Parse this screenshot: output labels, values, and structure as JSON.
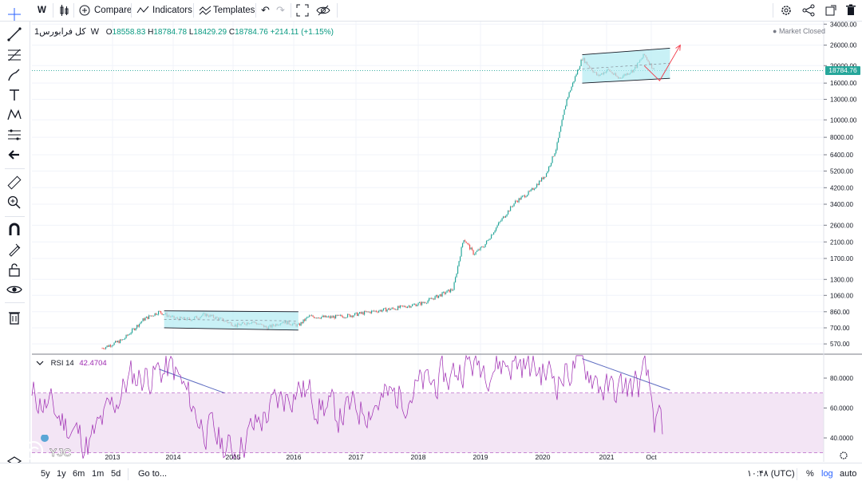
{
  "toolbar": {
    "interval": "W",
    "compare_label": "Compare",
    "indicators_label": "Indicators",
    "templates_label": "Templates"
  },
  "legend": {
    "symbol": "کل فرابورس",
    "interval": "1W",
    "o_label": "O",
    "o_value": "18558.83",
    "h_label": "H",
    "h_value": "18784.78",
    "l_label": "L",
    "l_value": "18429.29",
    "c_label": "C",
    "c_value": "18784.76",
    "change": "+214.11 (+1.15%)"
  },
  "market_status": "Market Closed",
  "last_price_badge": "18784.76",
  "rsi_legend": {
    "name": "RSI 14",
    "value": "42.4704"
  },
  "bottombar": {
    "ranges": [
      "5y",
      "1y",
      "6m",
      "1m",
      "5d"
    ],
    "goto_label": "Go to...",
    "time_label": "۱۰:۴۸ (UTC)",
    "pct_label": "%",
    "log_label": "log",
    "auto_label": "auto"
  },
  "watermark": "YJC",
  "colors": {
    "up": "#26a69a",
    "down": "#ef5350",
    "rsi": "#9c27b0",
    "rsi_band": "#f3e5f5",
    "channel": "#b2ebf2",
    "trendline": "#5c6bc0",
    "arrow": "#f23645",
    "grid": "#f0f3fa"
  },
  "chart_data": [
    {
      "type": "candlestick",
      "series_name": "کل فرابورس",
      "scale": "log",
      "y_ticks": [
        "34000.00",
        "26000.00",
        "20000.00",
        "16000.00",
        "13000.00",
        "10000.00",
        "8000.00",
        "6400.00",
        "5200.00",
        "4200.00",
        "3400.00",
        "2600.00",
        "2100.00",
        "1700.00",
        "1300.00",
        "1060.00",
        "860.00",
        "700.00",
        "570.00"
      ],
      "x_ticks": [
        "2013",
        "2014",
        "2015",
        "2016",
        "2017",
        "2018",
        "2019",
        "2020",
        "2021",
        "Oct"
      ],
      "last_price": 18784.76,
      "path_points": [
        {
          "date": "2012-11",
          "close": 540
        },
        {
          "date": "2013-03",
          "close": 600
        },
        {
          "date": "2013-07",
          "close": 780
        },
        {
          "date": "2013-10",
          "close": 860
        },
        {
          "date": "2014-01",
          "close": 790
        },
        {
          "date": "2014-04",
          "close": 780
        },
        {
          "date": "2014-07",
          "close": 830
        },
        {
          "date": "2014-10",
          "close": 780
        },
        {
          "date": "2015-01",
          "close": 720
        },
        {
          "date": "2015-04",
          "close": 760
        },
        {
          "date": "2015-07",
          "close": 700
        },
        {
          "date": "2015-10",
          "close": 760
        },
        {
          "date": "2016-01",
          "close": 720
        },
        {
          "date": "2016-03",
          "close": 810
        },
        {
          "date": "2016-07",
          "close": 800
        },
        {
          "date": "2016-11",
          "close": 820
        },
        {
          "date": "2017-03",
          "close": 860
        },
        {
          "date": "2017-08",
          "close": 900
        },
        {
          "date": "2018-01",
          "close": 960
        },
        {
          "date": "2018-04",
          "close": 1050
        },
        {
          "date": "2018-07",
          "close": 1150
        },
        {
          "date": "2018-09",
          "close": 2200
        },
        {
          "date": "2018-11",
          "close": 1800
        },
        {
          "date": "2019-01",
          "close": 2000
        },
        {
          "date": "2019-04",
          "close": 2700
        },
        {
          "date": "2019-07",
          "close": 3500
        },
        {
          "date": "2019-10",
          "close": 4000
        },
        {
          "date": "2020-01",
          "close": 5000
        },
        {
          "date": "2020-03",
          "close": 7000
        },
        {
          "date": "2020-05",
          "close": 13000
        },
        {
          "date": "2020-08",
          "close": 22000
        },
        {
          "date": "2020-11",
          "close": 17500
        },
        {
          "date": "2021-01",
          "close": 19000
        },
        {
          "date": "2021-03",
          "close": 17000
        },
        {
          "date": "2021-06",
          "close": 19000
        },
        {
          "date": "2021-08",
          "close": 23000
        },
        {
          "date": "2021-10",
          "close": 18785
        }
      ],
      "annotations": {
        "channel_2014_2016": {
          "from": "2013-11",
          "to": "2016-01",
          "upper": [
            870,
            860
          ],
          "lower": [
            700,
            680
          ]
        },
        "channel_2020_2021": {
          "from": "2020-08",
          "to": "2022-01",
          "upper": [
            23000,
            25000
          ],
          "lower": [
            16000,
            17000
          ]
        },
        "projection": {
          "points": [
            {
              "date": "2021-08",
              "value": 20000
            },
            {
              "date": "2021-11",
              "value": 16500
            },
            {
              "date": "2022-03",
              "value": 26000
            }
          ]
        }
      }
    },
    {
      "type": "line",
      "series_name": "RSI 14",
      "y_ticks": [
        "80.0000",
        "60.0000",
        "40.0000"
      ],
      "band": [
        30,
        70
      ],
      "last_value": 42.4704,
      "trendlines": [
        {
          "from": {
            "date": "2013-10",
            "value": 86
          },
          "to": {
            "date": "2016-09",
            "value": 42
          }
        },
        {
          "from": {
            "date": "2020-08",
            "value": 93
          },
          "to": {
            "date": "2022-01",
            "value": 72
          }
        }
      ]
    }
  ]
}
